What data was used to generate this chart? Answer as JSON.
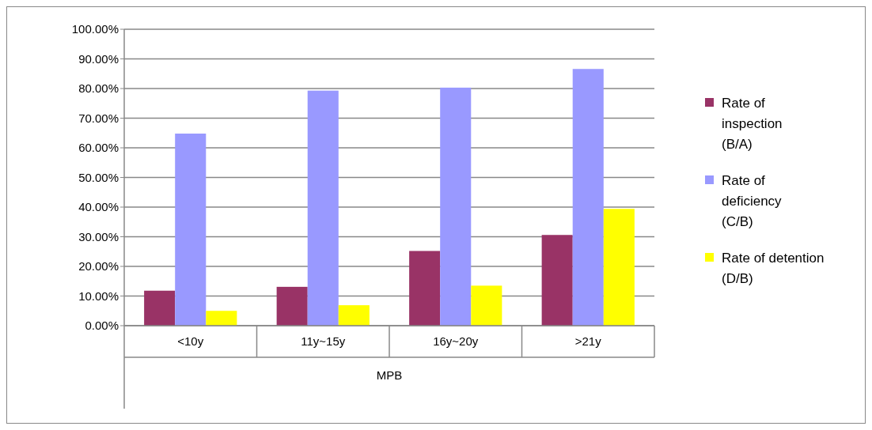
{
  "chart_data": {
    "type": "bar",
    "categories": [
      "<10y",
      "11y~15y",
      "16y~20y",
      ">21y"
    ],
    "xlabel": "MPB",
    "series": [
      {
        "name": "Rate of inspection (B/A)",
        "color": "#993366",
        "values": [
          11.8,
          13.1,
          25.2,
          30.6
        ]
      },
      {
        "name": "Rate of deficiency (C/B)",
        "color": "#9999ff",
        "values": [
          64.8,
          79.3,
          80.3,
          86.6
        ]
      },
      {
        "name": "Rate of detention (D/B)",
        "color": "#ffff00",
        "values": [
          5.0,
          6.9,
          13.5,
          39.4
        ]
      }
    ],
    "ylim": [
      0,
      100
    ],
    "yticks": [
      {
        "value": 0,
        "label": "0.00%"
      },
      {
        "value": 10,
        "label": "10.00%"
      },
      {
        "value": 20,
        "label": "20.00%"
      },
      {
        "value": 30,
        "label": "30.00%"
      },
      {
        "value": 40,
        "label": "40.00%"
      },
      {
        "value": 50,
        "label": "50.00%"
      },
      {
        "value": 60,
        "label": "60.00%"
      },
      {
        "value": 70,
        "label": "70.00%"
      },
      {
        "value": 80,
        "label": "80.00%"
      },
      {
        "value": 90,
        "label": "90.00%"
      },
      {
        "value": 100,
        "label": "100.00%"
      }
    ],
    "grid": "y",
    "legend": "right"
  }
}
